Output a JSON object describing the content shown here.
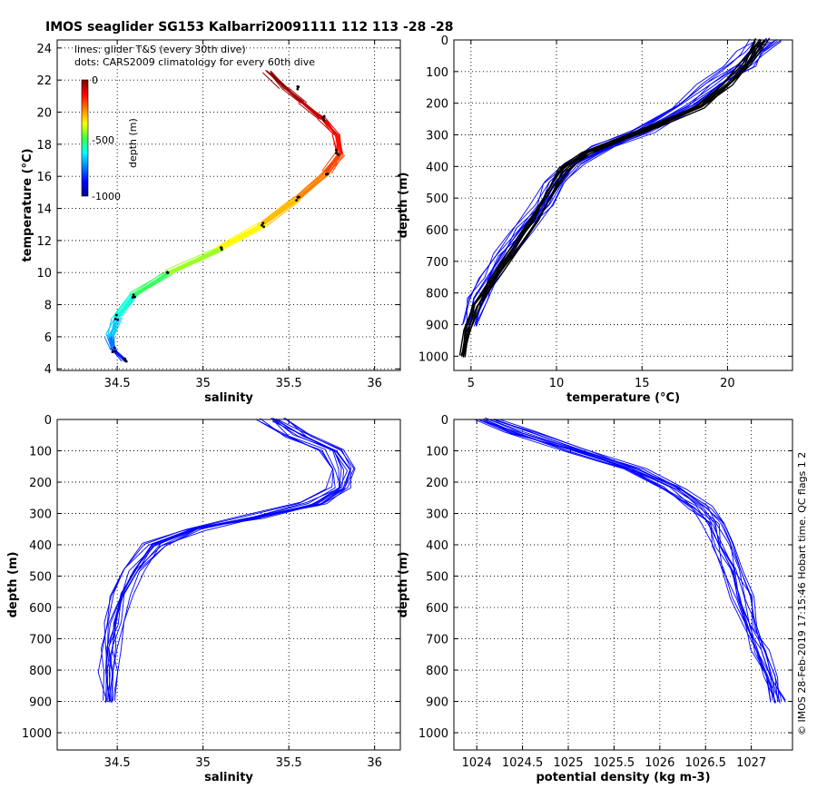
{
  "figure": {
    "title": "IMOS seaglider SG153 Kalbarri20091111 112  113  -28  -28",
    "note_lines": "lines: glider T&S (every 30th dive)",
    "note_dots": "dots: CARS2009 climatology for every 60th dive",
    "side_text": "© IMOS 28-Feb-2019 17:15:46 Hobart time. QC flags 1  2",
    "colorbar": {
      "label": "depth (m)",
      "ticks": [
        "0",
        "-500",
        "-1000"
      ],
      "values": [
        0,
        -500,
        -1000
      ]
    }
  },
  "chart_data": [
    {
      "type": "line",
      "id": "ts",
      "xlabel": "salinity",
      "ylabel": "temperature (°C)",
      "xlim": [
        34.15,
        36.15
      ],
      "ylim": [
        3.9,
        24.5
      ],
      "xticks": [
        34.5,
        35,
        35.5,
        36
      ],
      "xtick_labels": [
        "34.5",
        "35",
        "35.5",
        "36"
      ],
      "yticks": [
        4,
        6,
        8,
        10,
        12,
        14,
        16,
        18,
        20,
        22,
        24
      ],
      "ytick_labels": [
        "4",
        "6",
        "8",
        "10",
        "12",
        "14",
        "16",
        "18",
        "20",
        "22",
        "24"
      ],
      "grid": true,
      "color_by": "depth",
      "series": [
        {
          "x": [
            34.55,
            34.48,
            34.46,
            34.5,
            34.6,
            34.8,
            35.1,
            35.35,
            35.55,
            35.72,
            35.8,
            35.78,
            35.7,
            35.58,
            35.48,
            35.38
          ],
          "y": [
            4.5,
            5.2,
            6.0,
            7.2,
            8.6,
            10.0,
            11.5,
            13.0,
            14.6,
            16.2,
            17.4,
            18.6,
            19.6,
            20.6,
            21.5,
            22.5
          ],
          "depth": [
            -900,
            -800,
            -720,
            -640,
            -560,
            -480,
            -400,
            -340,
            -280,
            -220,
            -160,
            -120,
            -80,
            -50,
            -25,
            0
          ]
        }
      ],
      "climatology_dots": {
        "x": [
          34.55,
          34.48,
          34.5,
          34.6,
          34.8,
          35.1,
          35.35,
          35.55,
          35.72,
          35.78,
          35.7,
          35.55
        ],
        "y": [
          4.5,
          5.2,
          7.2,
          8.6,
          10.0,
          11.5,
          13.0,
          14.6,
          16.2,
          17.5,
          19.6,
          21.5
        ]
      }
    },
    {
      "type": "line",
      "id": "temp-depth",
      "xlabel": "temperature (°C)",
      "ylabel": "depth (m)",
      "xlim": [
        4,
        23.8
      ],
      "ylim": [
        1045,
        0
      ],
      "xticks": [
        5,
        10,
        15,
        20
      ],
      "xtick_labels": [
        "5",
        "10",
        "15",
        "20"
      ],
      "yticks": [
        0,
        100,
        200,
        300,
        400,
        500,
        600,
        700,
        800,
        900,
        1000
      ],
      "ytick_labels": [
        "0",
        "100",
        "200",
        "300",
        "400",
        "500",
        "600",
        "700",
        "800",
        "900",
        "1000"
      ],
      "grid": true,
      "series": [
        {
          "color": "#0000ff",
          "x": [
            22.2,
            21.5,
            20.8,
            19.2,
            17.6,
            15.0,
            12.8,
            11.0,
            9.9,
            9.2,
            8.0,
            6.9,
            6.0,
            5.4,
            5.0
          ],
          "y": [
            0,
            40,
            80,
            140,
            210,
            290,
            340,
            390,
            450,
            520,
            600,
            680,
            750,
            820,
            900
          ]
        },
        {
          "color": "#000000",
          "x": [
            22.0,
            21.5,
            21.0,
            20.0,
            18.4,
            16.0,
            13.5,
            11.6,
            10.4,
            9.6,
            8.7,
            7.6,
            6.4,
            5.3,
            4.8,
            4.5
          ],
          "y": [
            0,
            40,
            80,
            140,
            210,
            270,
            320,
            360,
            410,
            480,
            570,
            660,
            750,
            840,
            920,
            1000
          ]
        }
      ]
    },
    {
      "type": "line",
      "id": "sal-depth",
      "xlabel": "salinity",
      "ylabel": "depth (m)",
      "xlim": [
        34.15,
        36.15
      ],
      "ylim": [
        1055,
        0
      ],
      "xticks": [
        34.5,
        35,
        35.5,
        36
      ],
      "xtick_labels": [
        "34.5",
        "35",
        "35.5",
        "36"
      ],
      "yticks": [
        0,
        100,
        200,
        300,
        400,
        500,
        600,
        700,
        800,
        900,
        1000
      ],
      "ytick_labels": [
        "0",
        "100",
        "200",
        "300",
        "400",
        "500",
        "600",
        "700",
        "800",
        "900",
        "1000"
      ],
      "grid": true,
      "series": [
        {
          "color": "#0000ff",
          "x": [
            35.4,
            35.55,
            35.75,
            35.82,
            35.8,
            35.65,
            35.3,
            34.95,
            34.72,
            34.6,
            34.52,
            34.48,
            34.46,
            34.45,
            34.46
          ],
          "y": [
            0,
            50,
            100,
            160,
            220,
            270,
            310,
            350,
            400,
            480,
            560,
            650,
            730,
            810,
            900
          ]
        }
      ]
    },
    {
      "type": "line",
      "id": "dens-depth",
      "xlabel": "potential density (kg m-3)",
      "ylabel": "depth (m)",
      "xlim": [
        1023.75,
        1027.45
      ],
      "ylim": [
        1055,
        0
      ],
      "xticks": [
        1024,
        1024.5,
        1025,
        1025.5,
        1026,
        1026.5,
        1027
      ],
      "xtick_labels": [
        "1024",
        "1024.5",
        "1025",
        "1025.5",
        "1026",
        "1026.5",
        "1027"
      ],
      "yticks": [
        0,
        100,
        200,
        300,
        400,
        500,
        600,
        700,
        800,
        900,
        1000
      ],
      "ytick_labels": [
        "0",
        "100",
        "200",
        "300",
        "400",
        "500",
        "600",
        "700",
        "800",
        "900",
        "1000"
      ],
      "grid": true,
      "series": [
        {
          "color": "#0000ff",
          "x": [
            1024.1,
            1024.5,
            1025.1,
            1025.7,
            1026.15,
            1026.45,
            1026.6,
            1026.7,
            1026.8,
            1026.9,
            1027.0,
            1027.1,
            1027.2,
            1027.3
          ],
          "y": [
            0,
            40,
            100,
            160,
            220,
            280,
            330,
            400,
            480,
            570,
            660,
            740,
            820,
            900
          ]
        }
      ]
    }
  ]
}
